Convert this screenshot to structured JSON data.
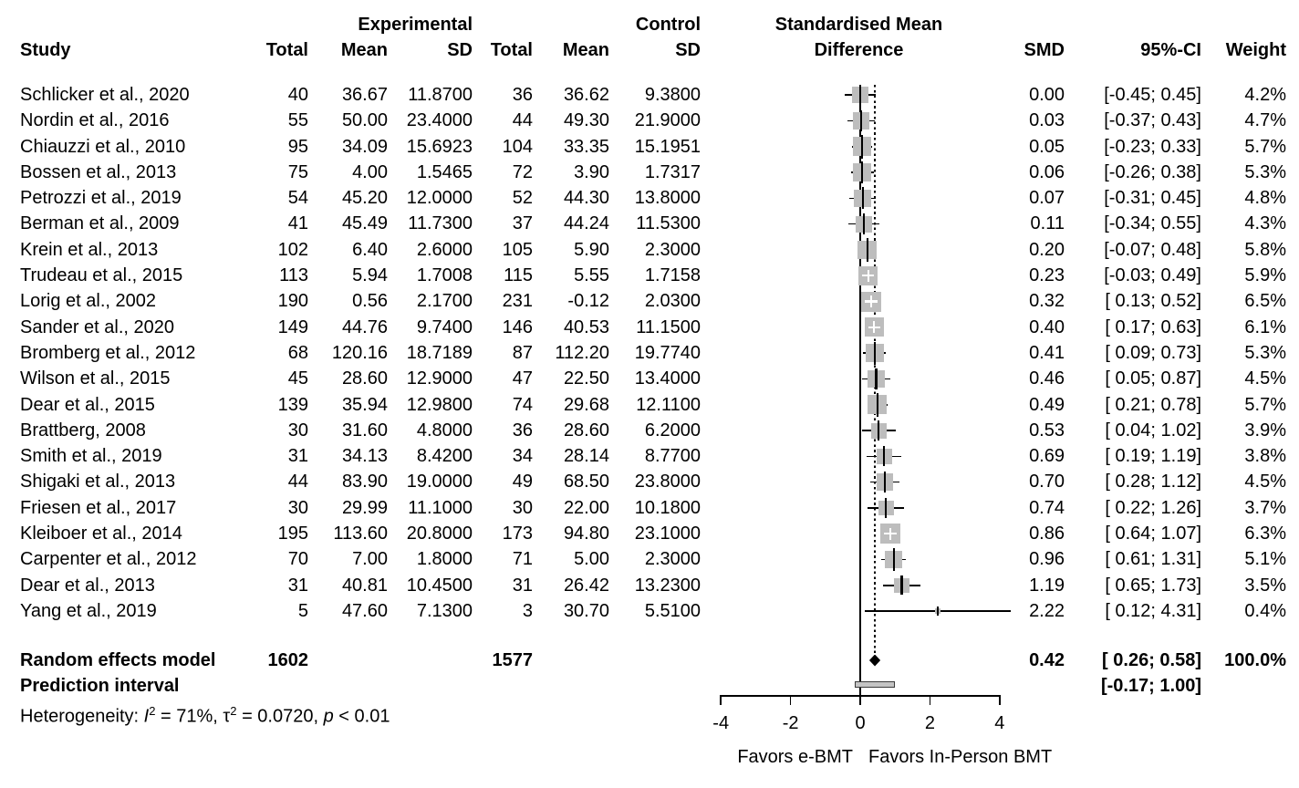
{
  "header": {
    "group1": "Experimental",
    "group2": "Control",
    "effect_line1": "Standardised Mean",
    "effect_line2": "Difference",
    "study": "Study",
    "total": "Total",
    "mean": "Mean",
    "sd": "SD",
    "total2": "Total",
    "mean2": "Mean",
    "sd2": "SD",
    "smd": "SMD",
    "ci": "95%-CI",
    "weight": "Weight"
  },
  "colors": {
    "square_fill": "#bdbdbd",
    "line": "#000000",
    "diamond": "#000000",
    "prediction_fill": "#c4c4c4",
    "prediction_border": "#3a3a3a"
  },
  "chart_data": {
    "type": "forest",
    "x_axis": {
      "min": -4,
      "max": 4,
      "tick_values": [
        -4,
        -2,
        0,
        2,
        4
      ],
      "ticks": [
        "-4",
        "-2",
        "0",
        "2",
        "4"
      ],
      "ref_line": 0
    },
    "x_axis_labels": {
      "left": "Favors e-BMT",
      "right": "Favors In-Person BMT"
    },
    "studies": [
      {
        "name": "Schlicker et al., 2020",
        "exp_total": "40",
        "exp_mean": "36.67",
        "exp_sd": "11.8700",
        "ctl_total": "36",
        "ctl_mean": "36.62",
        "ctl_sd": "9.3800",
        "smd": 0.0,
        "ci_low": -0.45,
        "ci_high": 0.45,
        "smd_text": "0.00",
        "ci_text": "[-0.45; 0.45]",
        "weight": 4.2,
        "weight_text": "4.2%"
      },
      {
        "name": "Nordin et al., 2016",
        "exp_total": "55",
        "exp_mean": "50.00",
        "exp_sd": "23.4000",
        "ctl_total": "44",
        "ctl_mean": "49.30",
        "ctl_sd": "21.9000",
        "smd": 0.03,
        "ci_low": -0.37,
        "ci_high": 0.43,
        "smd_text": "0.03",
        "ci_text": "[-0.37; 0.43]",
        "weight": 4.7,
        "weight_text": "4.7%"
      },
      {
        "name": "Chiauzzi et al., 2010",
        "exp_total": "95",
        "exp_mean": "34.09",
        "exp_sd": "15.6923",
        "ctl_total": "104",
        "ctl_mean": "33.35",
        "ctl_sd": "15.1951",
        "smd": 0.05,
        "ci_low": -0.23,
        "ci_high": 0.33,
        "smd_text": "0.05",
        "ci_text": "[-0.23; 0.33]",
        "weight": 5.7,
        "weight_text": "5.7%"
      },
      {
        "name": "Bossen et al., 2013",
        "exp_total": "75",
        "exp_mean": "4.00",
        "exp_sd": "1.5465",
        "ctl_total": "72",
        "ctl_mean": "3.90",
        "ctl_sd": "1.7317",
        "smd": 0.06,
        "ci_low": -0.26,
        "ci_high": 0.38,
        "smd_text": "0.06",
        "ci_text": "[-0.26; 0.38]",
        "weight": 5.3,
        "weight_text": "5.3%"
      },
      {
        "name": "Petrozzi et al., 2019",
        "exp_total": "54",
        "exp_mean": "45.20",
        "exp_sd": "12.0000",
        "ctl_total": "52",
        "ctl_mean": "44.30",
        "ctl_sd": "13.8000",
        "smd": 0.07,
        "ci_low": -0.31,
        "ci_high": 0.45,
        "smd_text": "0.07",
        "ci_text": "[-0.31; 0.45]",
        "weight": 4.8,
        "weight_text": "4.8%"
      },
      {
        "name": "Berman et al., 2009",
        "exp_total": "41",
        "exp_mean": "45.49",
        "exp_sd": "11.7300",
        "ctl_total": "37",
        "ctl_mean": "44.24",
        "ctl_sd": "11.5300",
        "smd": 0.11,
        "ci_low": -0.34,
        "ci_high": 0.55,
        "smd_text": "0.11",
        "ci_text": "[-0.34; 0.55]",
        "weight": 4.3,
        "weight_text": "4.3%"
      },
      {
        "name": "Krein et al., 2013",
        "exp_total": "102",
        "exp_mean": "6.40",
        "exp_sd": "2.6000",
        "ctl_total": "105",
        "ctl_mean": "5.90",
        "ctl_sd": "2.3000",
        "smd": 0.2,
        "ci_low": -0.07,
        "ci_high": 0.48,
        "smd_text": "0.20",
        "ci_text": "[-0.07; 0.48]",
        "weight": 5.8,
        "weight_text": "5.8%"
      },
      {
        "name": "Trudeau et al., 2015",
        "exp_total": "113",
        "exp_mean": "5.94",
        "exp_sd": "1.7008",
        "ctl_total": "115",
        "ctl_mean": "5.55",
        "ctl_sd": "1.7158",
        "smd": 0.23,
        "ci_low": -0.03,
        "ci_high": 0.49,
        "smd_text": "0.23",
        "ci_text": "[-0.03; 0.49]",
        "weight": 5.9,
        "weight_text": "5.9%"
      },
      {
        "name": "Lorig et al., 2002",
        "exp_total": "190",
        "exp_mean": "0.56",
        "exp_sd": "2.1700",
        "ctl_total": "231",
        "ctl_mean": "-0.12",
        "ctl_sd": "2.0300",
        "smd": 0.32,
        "ci_low": 0.13,
        "ci_high": 0.52,
        "smd_text": "0.32",
        "ci_text": "[ 0.13; 0.52]",
        "weight": 6.5,
        "weight_text": "6.5%"
      },
      {
        "name": "Sander et al., 2020",
        "exp_total": "149",
        "exp_mean": "44.76",
        "exp_sd": "9.7400",
        "ctl_total": "146",
        "ctl_mean": "40.53",
        "ctl_sd": "11.1500",
        "smd": 0.4,
        "ci_low": 0.17,
        "ci_high": 0.63,
        "smd_text": "0.40",
        "ci_text": "[ 0.17; 0.63]",
        "weight": 6.1,
        "weight_text": "6.1%"
      },
      {
        "name": "Bromberg et al., 2012",
        "exp_total": "68",
        "exp_mean": "120.16",
        "exp_sd": "18.7189",
        "ctl_total": "87",
        "ctl_mean": "112.20",
        "ctl_sd": "19.7740",
        "smd": 0.41,
        "ci_low": 0.09,
        "ci_high": 0.73,
        "smd_text": "0.41",
        "ci_text": "[ 0.09; 0.73]",
        "weight": 5.3,
        "weight_text": "5.3%"
      },
      {
        "name": "Wilson et al., 2015",
        "exp_total": "45",
        "exp_mean": "28.60",
        "exp_sd": "12.9000",
        "ctl_total": "47",
        "ctl_mean": "22.50",
        "ctl_sd": "13.4000",
        "smd": 0.46,
        "ci_low": 0.05,
        "ci_high": 0.87,
        "smd_text": "0.46",
        "ci_text": "[ 0.05; 0.87]",
        "weight": 4.5,
        "weight_text": "4.5%"
      },
      {
        "name": "Dear et al., 2015",
        "exp_total": "139",
        "exp_mean": "35.94",
        "exp_sd": "12.9800",
        "ctl_total": "74",
        "ctl_mean": "29.68",
        "ctl_sd": "12.1100",
        "smd": 0.49,
        "ci_low": 0.21,
        "ci_high": 0.78,
        "smd_text": "0.49",
        "ci_text": "[ 0.21; 0.78]",
        "weight": 5.7,
        "weight_text": "5.7%"
      },
      {
        "name": "Brattberg, 2008",
        "exp_total": "30",
        "exp_mean": "31.60",
        "exp_sd": "4.8000",
        "ctl_total": "36",
        "ctl_mean": "28.60",
        "ctl_sd": "6.2000",
        "smd": 0.53,
        "ci_low": 0.04,
        "ci_high": 1.02,
        "smd_text": "0.53",
        "ci_text": "[ 0.04; 1.02]",
        "weight": 3.9,
        "weight_text": "3.9%"
      },
      {
        "name": "Smith et al., 2019",
        "exp_total": "31",
        "exp_mean": "34.13",
        "exp_sd": "8.4200",
        "ctl_total": "34",
        "ctl_mean": "28.14",
        "ctl_sd": "8.7700",
        "smd": 0.69,
        "ci_low": 0.19,
        "ci_high": 1.19,
        "smd_text": "0.69",
        "ci_text": "[ 0.19; 1.19]",
        "weight": 3.8,
        "weight_text": "3.8%"
      },
      {
        "name": "Shigaki et al., 2013",
        "exp_total": "44",
        "exp_mean": "83.90",
        "exp_sd": "19.0000",
        "ctl_total": "49",
        "ctl_mean": "68.50",
        "ctl_sd": "23.8000",
        "smd": 0.7,
        "ci_low": 0.28,
        "ci_high": 1.12,
        "smd_text": "0.70",
        "ci_text": "[ 0.28; 1.12]",
        "weight": 4.5,
        "weight_text": "4.5%"
      },
      {
        "name": "Friesen et al., 2017",
        "exp_total": "30",
        "exp_mean": "29.99",
        "exp_sd": "11.1000",
        "ctl_total": "30",
        "ctl_mean": "22.00",
        "ctl_sd": "10.1800",
        "smd": 0.74,
        "ci_low": 0.22,
        "ci_high": 1.26,
        "smd_text": "0.74",
        "ci_text": "[ 0.22; 1.26]",
        "weight": 3.7,
        "weight_text": "3.7%"
      },
      {
        "name": "Kleiboer et al., 2014",
        "exp_total": "195",
        "exp_mean": "113.60",
        "exp_sd": "20.8000",
        "ctl_total": "173",
        "ctl_mean": "94.80",
        "ctl_sd": "23.1000",
        "smd": 0.86,
        "ci_low": 0.64,
        "ci_high": 1.07,
        "smd_text": "0.86",
        "ci_text": "[ 0.64; 1.07]",
        "weight": 6.3,
        "weight_text": "6.3%"
      },
      {
        "name": "Carpenter et al., 2012",
        "exp_total": "70",
        "exp_mean": "7.00",
        "exp_sd": "1.8000",
        "ctl_total": "71",
        "ctl_mean": "5.00",
        "ctl_sd": "2.3000",
        "smd": 0.96,
        "ci_low": 0.61,
        "ci_high": 1.31,
        "smd_text": "0.96",
        "ci_text": "[ 0.61; 1.31]",
        "weight": 5.1,
        "weight_text": "5.1%"
      },
      {
        "name": "Dear et al., 2013",
        "exp_total": "31",
        "exp_mean": "40.81",
        "exp_sd": "10.4500",
        "ctl_total": "31",
        "ctl_mean": "26.42",
        "ctl_sd": "13.2300",
        "smd": 1.19,
        "ci_low": 0.65,
        "ci_high": 1.73,
        "smd_text": "1.19",
        "ci_text": "[ 0.65; 1.73]",
        "weight": 3.5,
        "weight_text": "3.5%"
      },
      {
        "name": "Yang et al., 2019",
        "exp_total": "5",
        "exp_mean": "47.60",
        "exp_sd": "7.1300",
        "ctl_total": "3",
        "ctl_mean": "30.70",
        "ctl_sd": "5.5100",
        "smd": 2.22,
        "ci_low": 0.12,
        "ci_high": 4.31,
        "smd_text": "2.22",
        "ci_text": "[ 0.12; 4.31]",
        "weight": 0.4,
        "weight_text": "0.4%"
      }
    ],
    "summary": {
      "label": "Random effects model",
      "exp_total": "1602",
      "ctl_total": "1577",
      "smd": 0.42,
      "ci_low": 0.26,
      "ci_high": 0.58,
      "smd_text": "0.42",
      "ci_text": "[ 0.26; 0.58]",
      "weight_text": "100.0%"
    },
    "prediction": {
      "label": "Prediction interval",
      "ci_low": -0.17,
      "ci_high": 1.0,
      "ci_text": "[-0.17; 1.00]"
    },
    "heterogeneity": {
      "prefix": "Heterogeneity: ",
      "i_symbol": "I",
      "i_exp": "2",
      "seg1": " = 71%, ",
      "tau_symbol": "τ",
      "tau_exp": "2",
      "seg2": " = 0.0720, ",
      "p_symbol": "p",
      "seg3": " < 0.01"
    }
  }
}
